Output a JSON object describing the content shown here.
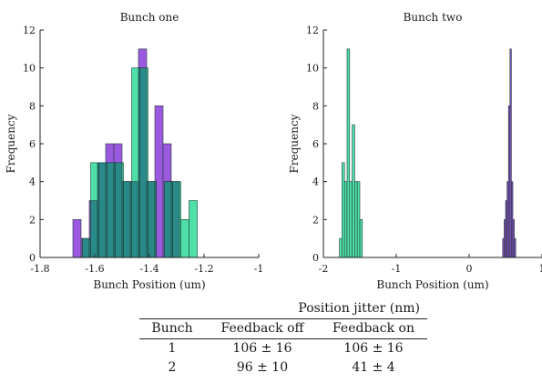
{
  "chart_data": [
    {
      "type": "histogram",
      "title": "Bunch one",
      "xlabel": "Bunch Position (um)",
      "ylabel": "Frequency",
      "xlim": [
        -1.8,
        -1
      ],
      "ylim": [
        0,
        12
      ],
      "xticks": [
        "-1.8",
        "-1.6",
        "-1.4",
        "-1.2",
        "-1"
      ],
      "xtick_values": [
        -1.8,
        -1.6,
        -1.4,
        -1.2,
        -1
      ],
      "yticks": [
        "0",
        "2",
        "4",
        "6",
        "8",
        "10",
        "12"
      ],
      "ytick_values": [
        0,
        2,
        4,
        6,
        8,
        10,
        12
      ],
      "colors": {
        "purple": "#9b59e0",
        "green": "#4ee0a8",
        "overlap": "#2a8a8a"
      },
      "series": [
        {
          "color": "purple",
          "bins": [
            {
              "x0": -1.68,
              "x1": -1.65,
              "count": 2
            },
            {
              "x0": -1.65,
              "x1": -1.62,
              "count": 1
            },
            {
              "x0": -1.62,
              "x1": -1.59,
              "count": 3
            },
            {
              "x0": -1.59,
              "x1": -1.56,
              "count": 5
            },
            {
              "x0": -1.56,
              "x1": -1.53,
              "count": 6
            },
            {
              "x0": -1.53,
              "x1": -1.5,
              "count": 6
            },
            {
              "x0": -1.5,
              "x1": -1.47,
              "count": 4
            },
            {
              "x0": -1.47,
              "x1": -1.44,
              "count": 4
            },
            {
              "x0": -1.44,
              "x1": -1.41,
              "count": 11
            },
            {
              "x0": -1.41,
              "x1": -1.38,
              "count": 4
            },
            {
              "x0": -1.38,
              "x1": -1.35,
              "count": 8
            },
            {
              "x0": -1.35,
              "x1": -1.32,
              "count": 6
            },
            {
              "x0": -1.32,
              "x1": -1.29,
              "count": 4
            }
          ]
        },
        {
          "color": "green",
          "bins": [
            {
              "x0": -1.645,
              "x1": -1.615,
              "count": 1
            },
            {
              "x0": -1.615,
              "x1": -1.585,
              "count": 5
            },
            {
              "x0": -1.585,
              "x1": -1.555,
              "count": 5
            },
            {
              "x0": -1.555,
              "x1": -1.525,
              "count": 5
            },
            {
              "x0": -1.525,
              "x1": -1.495,
              "count": 5
            },
            {
              "x0": -1.495,
              "x1": -1.465,
              "count": 4
            },
            {
              "x0": -1.465,
              "x1": -1.435,
              "count": 10
            },
            {
              "x0": -1.435,
              "x1": -1.405,
              "count": 10
            },
            {
              "x0": -1.405,
              "x1": -1.375,
              "count": 4
            },
            {
              "x0": -1.375,
              "x1": -1.345,
              "count": 0
            },
            {
              "x0": -1.345,
              "x1": -1.315,
              "count": 4
            },
            {
              "x0": -1.315,
              "x1": -1.285,
              "count": 4
            },
            {
              "x0": -1.285,
              "x1": -1.255,
              "count": 2
            },
            {
              "x0": -1.255,
              "x1": -1.225,
              "count": 3
            }
          ]
        }
      ]
    },
    {
      "type": "histogram",
      "title": "Bunch two",
      "xlabel": "Bunch Position (um)",
      "ylabel": "Frequency",
      "xlim": [
        -2,
        1
      ],
      "ylim": [
        0,
        12
      ],
      "xticks": [
        "-2",
        "-1",
        "0",
        "1"
      ],
      "xtick_values": [
        -2,
        -1,
        0,
        1
      ],
      "yticks": [
        "0",
        "2",
        "4",
        "6",
        "8",
        "10",
        "12"
      ],
      "ytick_values": [
        0,
        2,
        4,
        6,
        8,
        10,
        12
      ],
      "colors": {
        "green": "#4ee0a8",
        "purple": "#8a4fc7"
      },
      "series": [
        {
          "color": "green",
          "bins": [
            {
              "x0": -1.78,
              "x1": -1.745,
              "count": 1
            },
            {
              "x0": -1.745,
              "x1": -1.71,
              "count": 5
            },
            {
              "x0": -1.71,
              "x1": -1.675,
              "count": 4
            },
            {
              "x0": -1.675,
              "x1": -1.64,
              "count": 11
            },
            {
              "x0": -1.64,
              "x1": -1.605,
              "count": 4
            },
            {
              "x0": -1.605,
              "x1": -1.57,
              "count": 7
            },
            {
              "x0": -1.57,
              "x1": -1.535,
              "count": 4
            },
            {
              "x0": -1.535,
              "x1": -1.5,
              "count": 4
            },
            {
              "x0": -1.5,
              "x1": -1.465,
              "count": 2
            }
          ]
        },
        {
          "color": "purple",
          "bins": [
            {
              "x0": 0.46,
              "x1": 0.48,
              "count": 1
            },
            {
              "x0": 0.48,
              "x1": 0.5,
              "count": 2
            },
            {
              "x0": 0.5,
              "x1": 0.52,
              "count": 3
            },
            {
              "x0": 0.52,
              "x1": 0.54,
              "count": 4
            },
            {
              "x0": 0.54,
              "x1": 0.56,
              "count": 8
            },
            {
              "x0": 0.56,
              "x1": 0.58,
              "count": 11
            },
            {
              "x0": 0.58,
              "x1": 0.6,
              "count": 4
            },
            {
              "x0": 0.6,
              "x1": 0.62,
              "count": 2
            },
            {
              "x0": 0.62,
              "x1": 0.64,
              "count": 1
            }
          ]
        }
      ]
    }
  ],
  "table": {
    "group_header": "Position jitter (nm)",
    "headers": [
      "Bunch",
      "Feedback off",
      "Feedback on"
    ],
    "rows": [
      [
        "1",
        "106 ± 16",
        "106 ± 16"
      ],
      [
        "2",
        "96 ± 10",
        "41 ± 4"
      ]
    ]
  }
}
